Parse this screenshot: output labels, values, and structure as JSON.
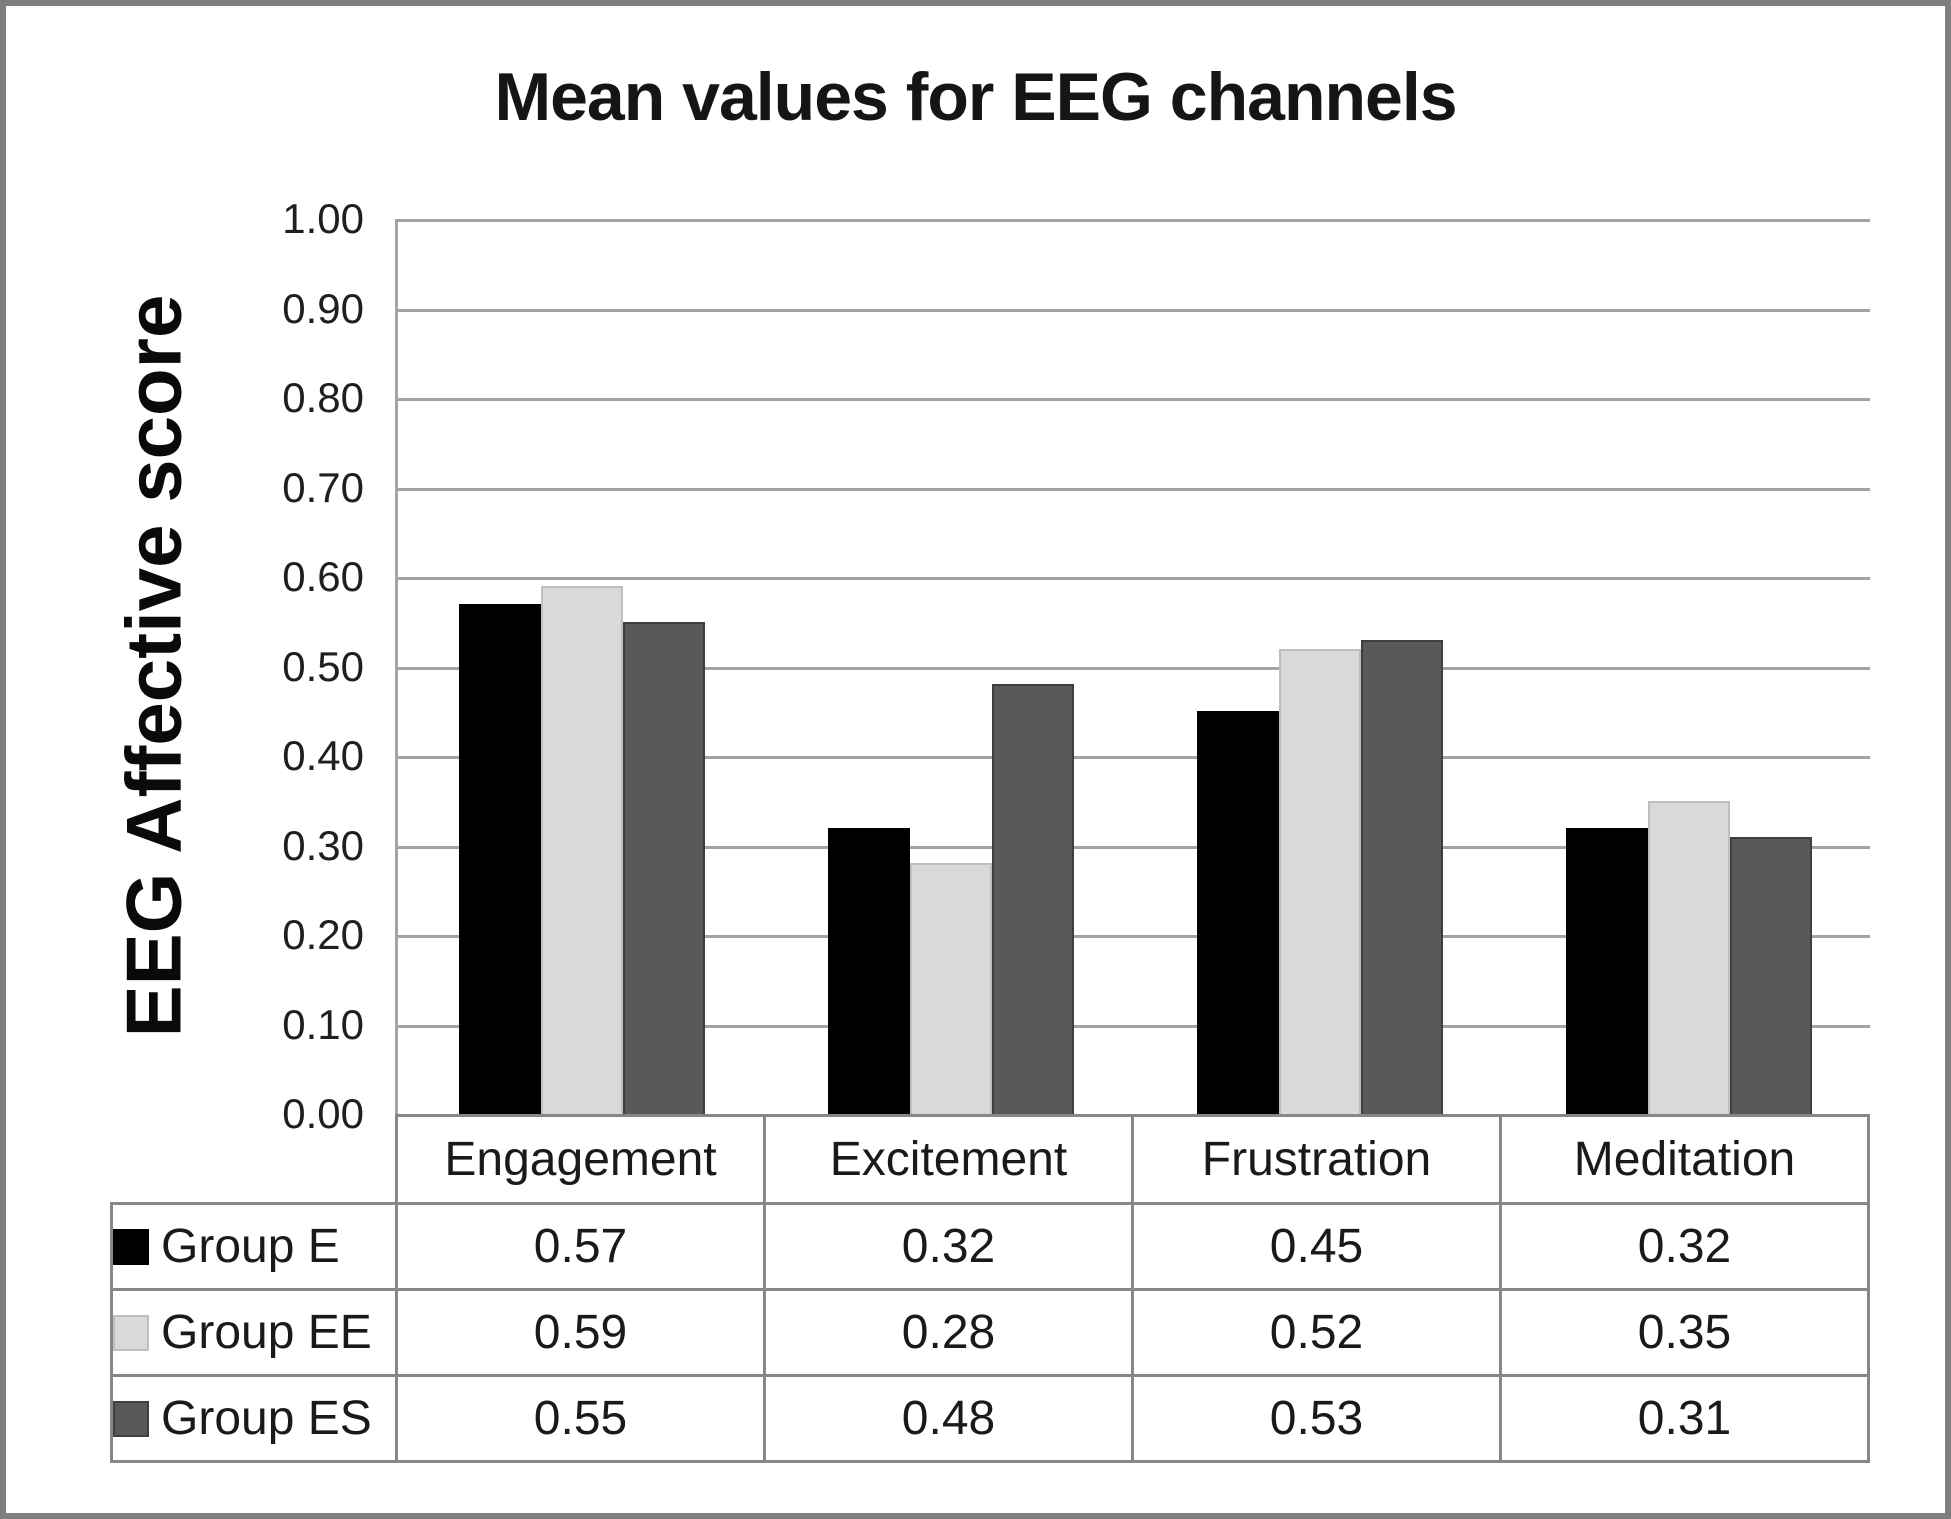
{
  "chart_data": {
    "type": "bar",
    "title": "Mean values for EEG channels",
    "ylabel": "EEG Affective score",
    "xlabel": "",
    "categories": [
      "Engagement",
      "Excitement",
      "Frustration",
      "Meditation"
    ],
    "series": [
      {
        "name": "Group E",
        "color": "#000000",
        "edge": "#000000",
        "values": [
          0.57,
          0.32,
          0.45,
          0.32
        ]
      },
      {
        "name": "Group EE",
        "color": "#d9d9d9",
        "edge": "#bfbfbf",
        "values": [
          0.59,
          0.28,
          0.52,
          0.35
        ]
      },
      {
        "name": "Group ES",
        "color": "#595959",
        "edge": "#3f3f3f",
        "values": [
          0.55,
          0.48,
          0.53,
          0.31
        ]
      }
    ],
    "ylim": [
      0.0,
      1.0
    ],
    "ytick_step": 0.1,
    "ytick_labels": [
      "1.00",
      "0.90",
      "0.80",
      "0.70",
      "0.60",
      "0.50",
      "0.40",
      "0.30",
      "0.20",
      "0.10",
      "0.00"
    ],
    "grid": true,
    "gridline_color": "#a3a3a3",
    "frame_border_color": "#7e7e7e",
    "table_border_color": "#878787",
    "legend_position": "table-left",
    "value_decimals": 2
  }
}
